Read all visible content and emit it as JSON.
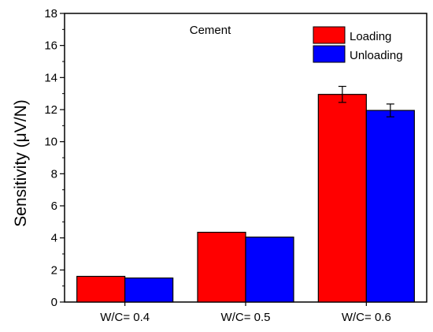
{
  "chart_data": {
    "type": "bar",
    "title": "",
    "annotation": "Cement",
    "xlabel": "",
    "ylabel": "Sensitivity (μV/N)",
    "ylim": [
      0,
      18
    ],
    "yticks": [
      0,
      2,
      4,
      6,
      8,
      10,
      12,
      14,
      16,
      18
    ],
    "categories": [
      "W/C= 0.4",
      "W/C= 0.5",
      "W/C= 0.6"
    ],
    "series": [
      {
        "name": "Loading",
        "color": "#ff0000",
        "values": [
          1.6,
          4.35,
          12.95
        ],
        "errors": [
          0.03,
          0.03,
          0.5
        ]
      },
      {
        "name": "Unloading",
        "color": "#0000ff",
        "values": [
          1.5,
          4.05,
          11.95
        ],
        "errors": [
          0.02,
          0.02,
          0.4
        ]
      }
    ],
    "legend_position": "top-right",
    "grid": false
  }
}
